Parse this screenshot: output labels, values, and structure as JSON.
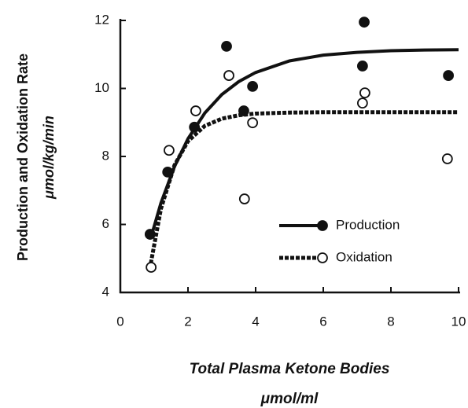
{
  "chart_data": {
    "type": "scatter",
    "y_label": "Production and Oxidation Rate",
    "y_units": "μmol/kg/min",
    "x_label": "Total Plasma Ketone Bodies",
    "x_units": "μmol/ml",
    "xlim": [
      0,
      10
    ],
    "xticks": [
      0,
      2,
      4,
      6,
      8,
      10
    ],
    "ylim": [
      4,
      12
    ],
    "yticks": [
      4,
      6,
      8,
      10,
      12
    ],
    "legend": "lower right",
    "series": [
      {
        "name": "Production",
        "color": "#111111",
        "marker": "filled",
        "line": "solid",
        "x": [
          0.88,
          1.4,
          2.19,
          3.14,
          3.65,
          3.91,
          7.21,
          7.16,
          9.7
        ],
        "values": [
          5.71,
          7.54,
          8.86,
          11.24,
          9.34,
          10.06,
          11.95,
          10.66,
          10.38
        ],
        "fit_x": [
          0.9,
          1.2,
          1.6,
          2.0,
          2.5,
          3,
          3.5,
          4,
          5,
          6,
          7,
          8,
          9,
          10
        ],
        "fit_values": [
          5.6,
          6.63,
          7.7,
          8.52,
          9.28,
          9.82,
          10.2,
          10.47,
          10.81,
          10.98,
          11.06,
          11.11,
          11.13,
          11.14
        ]
      },
      {
        "name": "Oxidation",
        "color": "#111111",
        "marker": "open",
        "line": "dashed",
        "x": [
          0.91,
          1.44,
          2.23,
          3.21,
          3.67,
          3.91,
          7.23,
          7.16,
          9.67
        ],
        "values": [
          4.74,
          8.18,
          9.34,
          10.38,
          6.75,
          8.99,
          9.87,
          9.57,
          7.93
        ],
        "fit_x": [
          0.9,
          1.2,
          1.6,
          2.0,
          2.5,
          3,
          3.5,
          4,
          5,
          6,
          7,
          8,
          9,
          10
        ],
        "fit_values": [
          4.85,
          6.46,
          7.74,
          8.45,
          8.9,
          9.11,
          9.21,
          9.26,
          9.29,
          9.3,
          9.3,
          9.3,
          9.3,
          9.3
        ]
      }
    ]
  }
}
